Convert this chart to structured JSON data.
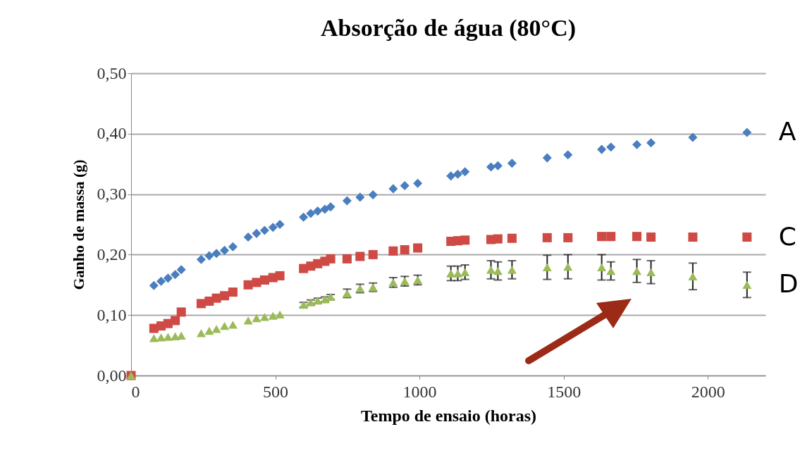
{
  "chart_data": {
    "type": "scatter",
    "title": "Absorção de água (80°C)",
    "xlabel": "Tempo de ensaio (horas)",
    "ylabel": "Ganho de massa (g)",
    "x": [
      0,
      79,
      104,
      128,
      153,
      174,
      243,
      271,
      296,
      324,
      353,
      406,
      435,
      463,
      492,
      516,
      598,
      623,
      647,
      672,
      692,
      749,
      794,
      839,
      909,
      949,
      994,
      1109,
      1133,
      1158,
      1248,
      1272,
      1321,
      1443,
      1515,
      1632,
      1664,
      1754,
      1803,
      1948,
      2136
    ],
    "series": [
      {
        "name": "A",
        "color": "#4a7ebf",
        "marker": "diamond",
        "values": [
          null,
          0.149,
          0.156,
          0.161,
          0.167,
          0.175,
          0.192,
          0.198,
          0.202,
          0.207,
          0.213,
          0.229,
          0.235,
          0.24,
          0.245,
          0.25,
          0.262,
          0.268,
          0.272,
          0.275,
          0.279,
          0.289,
          0.295,
          0.299,
          0.309,
          0.314,
          0.318,
          0.33,
          0.333,
          0.337,
          0.345,
          0.347,
          0.351,
          0.36,
          0.365,
          0.374,
          0.378,
          0.382,
          0.385,
          0.394,
          0.402
        ]
      },
      {
        "name": "C",
        "color": "#cf4a45",
        "marker": "square",
        "values": [
          0,
          0.078,
          0.082,
          0.086,
          0.091,
          0.105,
          0.119,
          0.123,
          0.128,
          0.132,
          0.138,
          0.15,
          0.154,
          0.158,
          0.162,
          0.165,
          0.177,
          0.181,
          0.185,
          0.189,
          0.193,
          0.193,
          0.197,
          0.2,
          0.206,
          0.208,
          0.211,
          0.222,
          0.223,
          0.224,
          0.225,
          0.226,
          0.227,
          0.228,
          0.228,
          0.23,
          0.23,
          0.23,
          0.229,
          0.229,
          0.229
        ]
      },
      {
        "name": "D",
        "color": "#9bbb59",
        "marker": "triangle",
        "values": [
          0,
          0.062,
          0.063,
          0.064,
          0.065,
          0.066,
          0.07,
          0.074,
          0.077,
          0.082,
          0.084,
          0.091,
          0.095,
          0.097,
          0.099,
          0.101,
          0.117,
          0.121,
          0.124,
          0.126,
          0.13,
          0.136,
          0.144,
          0.146,
          0.154,
          0.156,
          0.158,
          0.169,
          0.169,
          0.171,
          0.175,
          0.173,
          0.175,
          0.179,
          0.18,
          0.179,
          0.173,
          0.173,
          0.171,
          0.164,
          0.15
        ],
        "errors": [
          null,
          null,
          null,
          null,
          null,
          null,
          null,
          null,
          null,
          null,
          null,
          null,
          null,
          null,
          null,
          null,
          0.004,
          0.004,
          0.004,
          0.004,
          0.004,
          0.007,
          0.007,
          0.007,
          0.008,
          0.008,
          0.008,
          0.012,
          0.012,
          0.012,
          0.015,
          0.015,
          0.015,
          0.02,
          0.02,
          0.021,
          0.015,
          0.019,
          0.019,
          0.022,
          0.021
        ]
      }
    ],
    "xlim": [
      0,
      2200
    ],
    "xticks": [
      0,
      500,
      1000,
      1500,
      2000
    ],
    "ylim": [
      0,
      0.5
    ],
    "yticks": [
      {
        "value": 0,
        "label": "0,00"
      },
      {
        "value": 0.1,
        "label": "0,10"
      },
      {
        "value": 0.2,
        "label": "0,20"
      },
      {
        "value": 0.3,
        "label": "0,30"
      },
      {
        "value": 0.4,
        "label": "0,40"
      },
      {
        "value": 0.5,
        "label": "0,50"
      }
    ],
    "grid": "y",
    "legend": false
  }
}
